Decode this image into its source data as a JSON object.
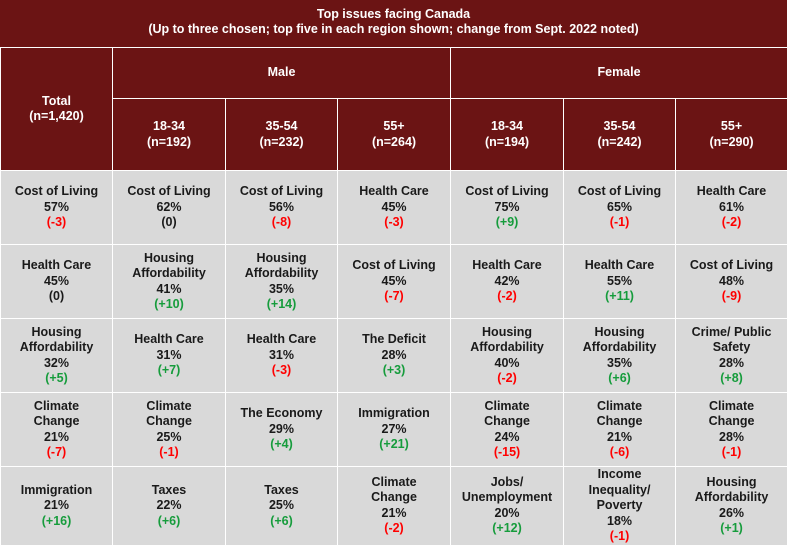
{
  "title": {
    "line1": "Top issues facing Canada",
    "line2": "(Up to three chosen; top five in each region shown; change from Sept. 2022 noted)"
  },
  "header": {
    "total_label": "Total",
    "total_n": "(n=1,420)",
    "male_label": "Male",
    "female_label": "Female",
    "columns": [
      {
        "age": "18-34",
        "n": "(n=192)"
      },
      {
        "age": "35-54",
        "n": "(n=232)"
      },
      {
        "age": "55+",
        "n": "(n=264)"
      },
      {
        "age": "18-34",
        "n": "(n=194)"
      },
      {
        "age": "35-54",
        "n": "(n=242)"
      },
      {
        "age": "55+",
        "n": "(n=290)"
      }
    ]
  },
  "rows": [
    [
      {
        "lines": [
          "Cost of Living"
        ],
        "pct": "57%",
        "change": "(-3)",
        "dir": "neg"
      },
      {
        "lines": [
          "Cost of Living"
        ],
        "pct": "62%",
        "change": "(0)",
        "dir": "neu"
      },
      {
        "lines": [
          "Cost of Living"
        ],
        "pct": "56%",
        "change": "(-8)",
        "dir": "neg"
      },
      {
        "lines": [
          "Health Care"
        ],
        "pct": "45%",
        "change": "(-3)",
        "dir": "neg"
      },
      {
        "lines": [
          "Cost of Living"
        ],
        "pct": "75%",
        "change": "(+9)",
        "dir": "pos"
      },
      {
        "lines": [
          "Cost of Living"
        ],
        "pct": "65%",
        "change": "(-1)",
        "dir": "neg"
      },
      {
        "lines": [
          "Health Care"
        ],
        "pct": "61%",
        "change": "(-2)",
        "dir": "neg"
      }
    ],
    [
      {
        "lines": [
          "Health Care"
        ],
        "pct": "45%",
        "change": "(0)",
        "dir": "neu"
      },
      {
        "lines": [
          "Housing",
          "Affordability"
        ],
        "pct": "41%",
        "change": "(+10)",
        "dir": "pos"
      },
      {
        "lines": [
          "Housing",
          "Affordability"
        ],
        "pct": "35%",
        "change": "(+14)",
        "dir": "pos"
      },
      {
        "lines": [
          "Cost of Living"
        ],
        "pct": "45%",
        "change": "(-7)",
        "dir": "neg"
      },
      {
        "lines": [
          "Health Care"
        ],
        "pct": "42%",
        "change": "(-2)",
        "dir": "neg"
      },
      {
        "lines": [
          "Health Care"
        ],
        "pct": "55%",
        "change": "(+11)",
        "dir": "pos"
      },
      {
        "lines": [
          "Cost of Living"
        ],
        "pct": "48%",
        "change": "(-9)",
        "dir": "neg"
      }
    ],
    [
      {
        "lines": [
          "Housing",
          "Affordability"
        ],
        "pct": "32%",
        "change": "(+5)",
        "dir": "pos"
      },
      {
        "lines": [
          "Health Care"
        ],
        "pct": "31%",
        "change": "(+7)",
        "dir": "pos"
      },
      {
        "lines": [
          "Health Care"
        ],
        "pct": "31%",
        "change": "(-3)",
        "dir": "neg"
      },
      {
        "lines": [
          "The Deficit"
        ],
        "pct": "28%",
        "change": "(+3)",
        "dir": "pos"
      },
      {
        "lines": [
          "Housing",
          "Affordability"
        ],
        "pct": "40%",
        "change": "(-2)",
        "dir": "neg"
      },
      {
        "lines": [
          "Housing",
          "Affordability"
        ],
        "pct": "35%",
        "change": "(+6)",
        "dir": "pos"
      },
      {
        "lines": [
          "Crime/ Public",
          "Safety"
        ],
        "pct": "28%",
        "change": "(+8)",
        "dir": "pos"
      }
    ],
    [
      {
        "lines": [
          "Climate",
          "Change"
        ],
        "pct": "21%",
        "change": "(-7)",
        "dir": "neg"
      },
      {
        "lines": [
          "Climate",
          "Change"
        ],
        "pct": "25%",
        "change": "(-1)",
        "dir": "neg"
      },
      {
        "lines": [
          "The Economy"
        ],
        "pct": "29%",
        "change": "(+4)",
        "dir": "pos"
      },
      {
        "lines": [
          "Immigration"
        ],
        "pct": "27%",
        "change": "(+21)",
        "dir": "pos"
      },
      {
        "lines": [
          "Climate",
          "Change"
        ],
        "pct": "24%",
        "change": "(-15)",
        "dir": "neg"
      },
      {
        "lines": [
          "Climate",
          "Change"
        ],
        "pct": "21%",
        "change": "(-6)",
        "dir": "neg"
      },
      {
        "lines": [
          "Climate",
          "Change"
        ],
        "pct": "28%",
        "change": "(-1)",
        "dir": "neg"
      }
    ],
    [
      {
        "lines": [
          "Immigration"
        ],
        "pct": "21%",
        "change": "(+16)",
        "dir": "pos"
      },
      {
        "lines": [
          "Taxes"
        ],
        "pct": "22%",
        "change": "(+6)",
        "dir": "pos"
      },
      {
        "lines": [
          "Taxes"
        ],
        "pct": "25%",
        "change": "(+6)",
        "dir": "pos"
      },
      {
        "lines": [
          "Climate",
          "Change"
        ],
        "pct": "21%",
        "change": "(-2)",
        "dir": "neg"
      },
      {
        "lines": [
          "Jobs/",
          "Unemployment"
        ],
        "pct": "20%",
        "change": "(+12)",
        "dir": "pos"
      },
      {
        "lines": [
          "Income",
          "Inequality/",
          "Poverty"
        ],
        "pct": "18%",
        "change": "(-1)",
        "dir": "neg"
      },
      {
        "lines": [
          "Housing",
          "Affordability"
        ],
        "pct": "26%",
        "change": "(+1)",
        "dir": "pos"
      }
    ]
  ],
  "colors": {
    "header_bg": "#6b1414",
    "cell_bg": "#d9d9d9",
    "positive": "#169c3c",
    "negative": "#ff0000",
    "neutral": "#1a1a1a"
  }
}
